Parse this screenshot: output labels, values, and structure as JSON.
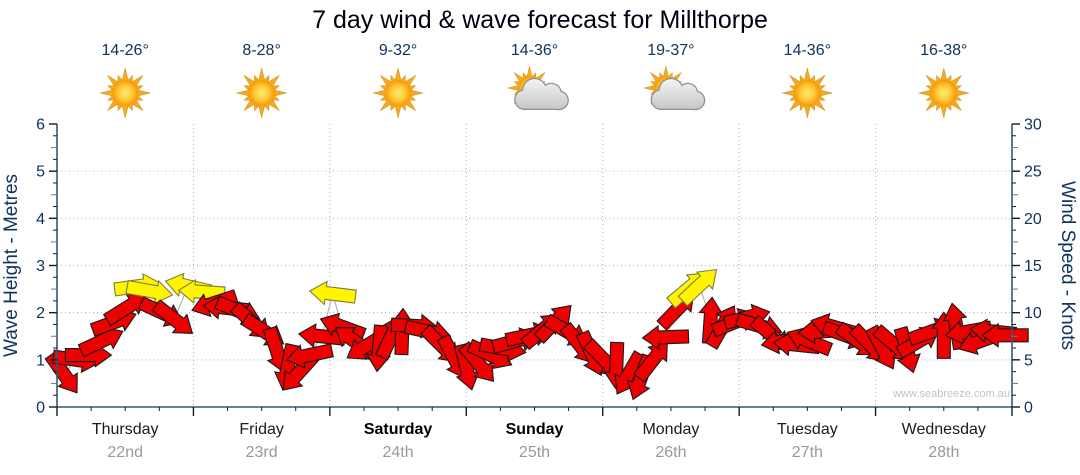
{
  "title": "7 day wind & wave forecast for Millthorpe",
  "watermark": "www.seabreeze.com.au",
  "days": [
    {
      "name": "Thursday",
      "date": "22nd",
      "temp": "14-26°",
      "icon": "sun",
      "weekend": false
    },
    {
      "name": "Friday",
      "date": "23rd",
      "temp": "8-28°",
      "icon": "sun",
      "weekend": false
    },
    {
      "name": "Saturday",
      "date": "24th",
      "temp": "9-32°",
      "icon": "sun",
      "weekend": true
    },
    {
      "name": "Sunday",
      "date": "25th",
      "temp": "14-36°",
      "icon": "sun-cloud",
      "weekend": true
    },
    {
      "name": "Monday",
      "date": "26th",
      "temp": "19-37°",
      "icon": "sun-cloud",
      "weekend": false
    },
    {
      "name": "Tuesday",
      "date": "27th",
      "temp": "14-36°",
      "icon": "sun",
      "weekend": false
    },
    {
      "name": "Wednesday",
      "date": "28th",
      "temp": "16-38°",
      "icon": "sun",
      "weekend": false
    }
  ],
  "chart_data": {
    "type": "scatter",
    "subtype": "wind-direction-arrows",
    "left_axis": {
      "label": "Wave Height - Metres",
      "min": 0,
      "max": 6,
      "major_tick": 1,
      "minor_tick": 0.25,
      "ticks": [
        0,
        1,
        2,
        3,
        4,
        5,
        6
      ]
    },
    "right_axis": {
      "label": "Wind Speed - Knots",
      "min": 0,
      "max": 30,
      "major_tick": 5,
      "minor_tick": 1.25,
      "ticks": [
        0,
        5,
        10,
        15,
        20,
        25,
        30
      ]
    },
    "x_axis": {
      "days": 7,
      "gridlines_at_day_boundaries": true
    },
    "grid": true,
    "legend": "none",
    "arrow_format": "[t_days_from_start, wind_speed_knots, direction_deg_0=east_clockwise, color r=red y=yellow]",
    "arrows": [
      [
        0.05,
        3.5,
        55,
        "r"
      ],
      [
        0.14,
        5.0,
        8,
        "r"
      ],
      [
        0.23,
        5.5,
        0,
        "r"
      ],
      [
        0.33,
        7.0,
        -25,
        "r"
      ],
      [
        0.42,
        9.0,
        -20,
        "r"
      ],
      [
        0.51,
        10.5,
        -32,
        "r"
      ],
      [
        0.59,
        12.8,
        -8,
        "y"
      ],
      [
        0.68,
        12.3,
        10,
        "y"
      ],
      [
        0.77,
        10.0,
        25,
        "r"
      ],
      [
        0.86,
        9.3,
        38,
        "r"
      ],
      [
        0.96,
        12.8,
        -167,
        "y"
      ],
      [
        1.06,
        12.2,
        184,
        "y"
      ],
      [
        1.15,
        11.0,
        162,
        "r"
      ],
      [
        1.24,
        10.5,
        -174,
        "r"
      ],
      [
        1.33,
        10.2,
        22,
        "r"
      ],
      [
        1.43,
        9.0,
        42,
        "r"
      ],
      [
        1.52,
        8.0,
        33,
        "r"
      ],
      [
        1.61,
        6.0,
        72,
        "r"
      ],
      [
        1.69,
        4.2,
        102,
        "r"
      ],
      [
        1.77,
        3.6,
        132,
        "r"
      ],
      [
        1.85,
        5.5,
        168,
        "r"
      ],
      [
        1.94,
        7.5,
        186,
        "r"
      ],
      [
        2.02,
        12.0,
        187,
        "y"
      ],
      [
        2.09,
        8.5,
        200,
        "r"
      ],
      [
        2.18,
        7.0,
        215,
        "r"
      ],
      [
        2.27,
        6.5,
        148,
        "r"
      ],
      [
        2.36,
        6.2,
        95,
        "r"
      ],
      [
        2.45,
        7.5,
        -65,
        "r"
      ],
      [
        2.53,
        8.0,
        -88,
        "r"
      ],
      [
        2.62,
        8.6,
        3,
        "r"
      ],
      [
        2.72,
        8.0,
        12,
        "r"
      ],
      [
        2.82,
        6.5,
        45,
        "r"
      ],
      [
        2.91,
        5.2,
        62,
        "r"
      ],
      [
        3.0,
        4.2,
        76,
        "r"
      ],
      [
        3.09,
        4.6,
        50,
        "r"
      ],
      [
        3.18,
        5.5,
        25,
        "r"
      ],
      [
        3.27,
        6.2,
        10,
        "r"
      ],
      [
        3.36,
        7.0,
        -15,
        "r"
      ],
      [
        3.46,
        7.6,
        -12,
        "r"
      ],
      [
        3.56,
        8.2,
        -40,
        "r"
      ],
      [
        3.65,
        9.0,
        -46,
        "r"
      ],
      [
        3.74,
        8.0,
        30,
        "r"
      ],
      [
        3.83,
        6.6,
        52,
        "r"
      ],
      [
        3.92,
        5.6,
        66,
        "r"
      ],
      [
        4.01,
        5.0,
        46,
        "r"
      ],
      [
        4.1,
        4.4,
        92,
        "r"
      ],
      [
        4.19,
        3.5,
        120,
        "r"
      ],
      [
        4.28,
        3.1,
        110,
        "r"
      ],
      [
        4.37,
        5.0,
        -52,
        "r"
      ],
      [
        4.46,
        7.4,
        178,
        "r"
      ],
      [
        4.55,
        10.4,
        -46,
        "r"
      ],
      [
        4.63,
        12.6,
        -40,
        "y"
      ],
      [
        4.71,
        12.9,
        -43,
        "y"
      ],
      [
        4.79,
        9.2,
        -86,
        "r"
      ],
      [
        4.88,
        8.6,
        -60,
        "r"
      ],
      [
        4.97,
        9.0,
        -22,
        "r"
      ],
      [
        5.06,
        9.5,
        -14,
        "r"
      ],
      [
        5.15,
        8.6,
        16,
        "r"
      ],
      [
        5.24,
        7.6,
        40,
        "r"
      ],
      [
        5.33,
        7.0,
        170,
        "r"
      ],
      [
        5.42,
        6.6,
        186,
        "r"
      ],
      [
        5.51,
        7.0,
        202,
        "r"
      ],
      [
        5.6,
        8.0,
        176,
        "r"
      ],
      [
        5.69,
        8.5,
        -164,
        "r"
      ],
      [
        5.78,
        7.6,
        20,
        "r"
      ],
      [
        5.87,
        7.0,
        36,
        "r"
      ],
      [
        5.96,
        6.6,
        46,
        "r"
      ],
      [
        6.05,
        6.2,
        62,
        "r"
      ],
      [
        6.14,
        6.6,
        40,
        "r"
      ],
      [
        6.23,
        6.0,
        74,
        "r"
      ],
      [
        6.32,
        7.0,
        -30,
        "r"
      ],
      [
        6.41,
        8.0,
        -20,
        "r"
      ],
      [
        6.5,
        7.6,
        -90,
        "r"
      ],
      [
        6.59,
        8.6,
        -100,
        "r"
      ],
      [
        6.68,
        8.0,
        170,
        "r"
      ],
      [
        6.77,
        7.0,
        160,
        "r"
      ],
      [
        6.86,
        8.0,
        186,
        "r"
      ],
      [
        6.95,
        7.6,
        180,
        "r"
      ]
    ]
  },
  "colors": {
    "arrow_red": "#EC0000",
    "arrow_red_outline": "#1a1a1a",
    "arrow_yellow": "#FFF500",
    "arrow_yellow_outline": "#7d7d3a",
    "stem": "#aaaaaa",
    "axis_line": "#33577B",
    "tick": "#1a1a1a",
    "tick_label": "#0F3360",
    "axis_title": "#0F3360",
    "grid": "#b0b0b0",
    "sun_core": "#FFB400",
    "sun_ray": "#F6A821",
    "cloud": "#DCDCDC"
  }
}
